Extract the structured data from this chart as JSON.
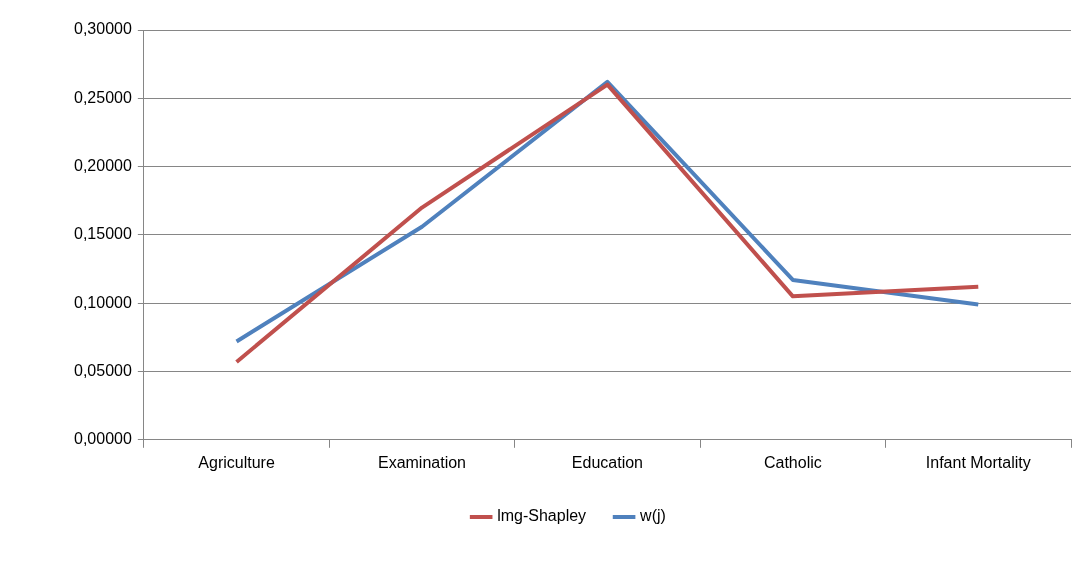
{
  "chart_data": {
    "type": "line",
    "categories": [
      "Agriculture",
      "Examination",
      "Education",
      "Catholic",
      "Infant Mortality"
    ],
    "series": [
      {
        "name": "lmg-Shapley",
        "color": "#c0504d",
        "values": [
          0.057,
          0.17,
          0.26,
          0.105,
          0.112
        ]
      },
      {
        "name": "w(j)",
        "color": "#4f81bd",
        "values": [
          0.072,
          0.156,
          0.262,
          0.117,
          0.099
        ]
      }
    ],
    "ylim": [
      0,
      0.3
    ],
    "yticks": [
      {
        "value": 0,
        "label": "0,00000"
      },
      {
        "value": 0.05,
        "label": "0,05000"
      },
      {
        "value": 0.1,
        "label": "0,10000"
      },
      {
        "value": 0.15,
        "label": "0,15000"
      },
      {
        "value": 0.2,
        "label": "0,20000"
      },
      {
        "value": 0.25,
        "label": "0,25000"
      },
      {
        "value": 0.3,
        "label": "0,30000"
      }
    ],
    "grid": "y",
    "legend": "bottom",
    "marker": "none",
    "line_style": "solid"
  }
}
